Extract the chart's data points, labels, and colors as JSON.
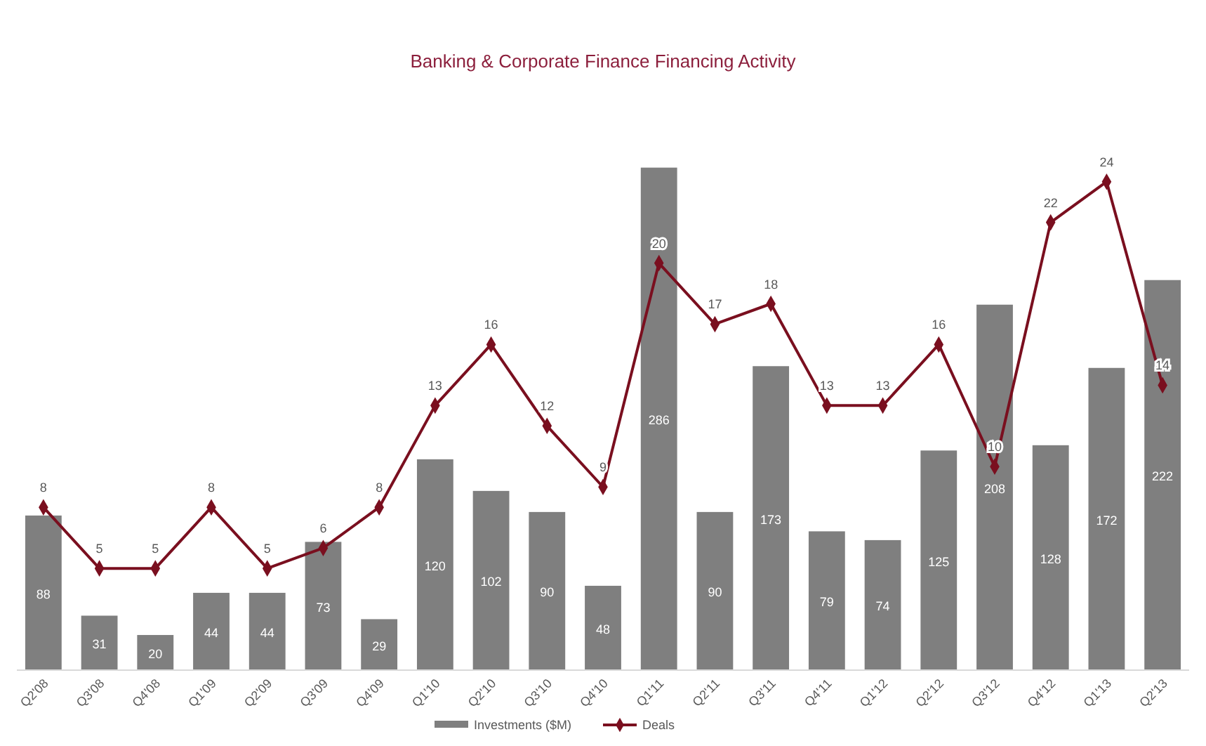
{
  "chart_data": {
    "type": "bar",
    "title": "Banking & Corporate Finance Financing Activity",
    "categories": [
      "Q2'08",
      "Q3'08",
      "Q4'08",
      "Q1'09",
      "Q2'09",
      "Q3'09",
      "Q4'09",
      "Q1'10",
      "Q2'10",
      "Q3'10",
      "Q4'10",
      "Q1'11",
      "Q2'11",
      "Q3'11",
      "Q4'11",
      "Q1'12",
      "Q2'12",
      "Q3'12",
      "Q4'12",
      "Q1'13",
      "Q2'13"
    ],
    "series": [
      {
        "name": "Investments ($M)",
        "color": "#7f7f7f",
        "values": [
          88,
          31,
          20,
          44,
          44,
          73,
          29,
          120,
          102,
          90,
          48,
          286,
          90,
          173,
          79,
          74,
          125,
          208,
          128,
          172,
          222
        ]
      },
      {
        "name": "Deals",
        "type": "line",
        "axis": "y2",
        "color": "#7a0f1f",
        "marker": "diamond",
        "values": [
          8,
          5,
          5,
          8,
          5,
          6,
          8,
          13,
          16,
          12,
          9,
          20,
          17,
          18,
          13,
          13,
          16,
          10,
          22,
          24,
          14
        ]
      }
    ],
    "tick_labels": "x",
    "legend": "bottom",
    "data_labels": true
  }
}
